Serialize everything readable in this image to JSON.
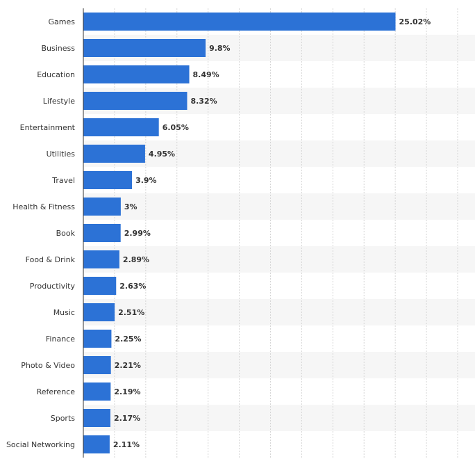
{
  "chart_data": {
    "type": "bar",
    "orientation": "horizontal",
    "categories": [
      "Games",
      "Business",
      "Education",
      "Lifestyle",
      "Entertainment",
      "Utilities",
      "Travel",
      "Health & Fitness",
      "Book",
      "Food & Drink",
      "Productivity",
      "Music",
      "Finance",
      "Photo & Video",
      "Reference",
      "Sports",
      "Social Networking"
    ],
    "values": [
      25.02,
      9.8,
      8.49,
      8.32,
      6.05,
      4.95,
      3.9,
      3,
      2.99,
      2.89,
      2.63,
      2.51,
      2.25,
      2.21,
      2.19,
      2.17,
      2.11
    ],
    "value_labels": [
      "25.02%",
      "9.8%",
      "8.49%",
      "8.32%",
      "6.05%",
      "4.95%",
      "3.9%",
      "3%",
      "2.99%",
      "2.89%",
      "2.63%",
      "2.51%",
      "2.25%",
      "2.21%",
      "2.19%",
      "2.17%",
      "2.11%"
    ],
    "xlim": [
      0,
      30
    ],
    "grid": true,
    "bar_color": "#2c72d6",
    "stripe_color": "#f6f6f6",
    "title": "",
    "xlabel": "",
    "ylabel": ""
  }
}
